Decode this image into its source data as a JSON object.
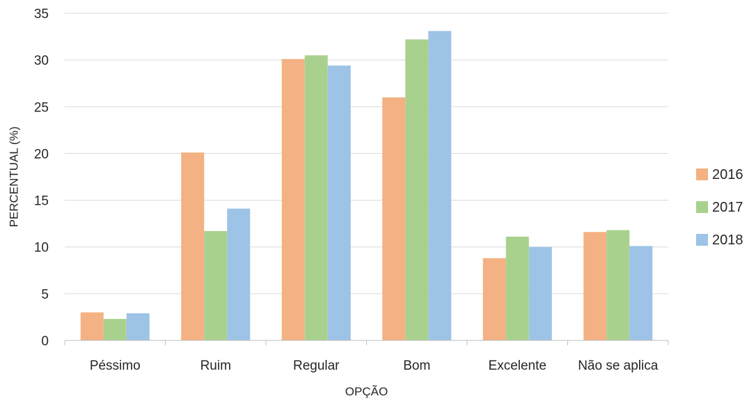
{
  "chart_data": {
    "type": "bar",
    "categories": [
      "Péssimo",
      "Ruim",
      "Regular",
      "Bom",
      "Excelente",
      "Não se aplica"
    ],
    "series": [
      {
        "name": "2016",
        "color": "#f4b183",
        "values": [
          3.0,
          20.1,
          30.1,
          26.0,
          8.8,
          11.6
        ]
      },
      {
        "name": "2017",
        "color": "#a9d18e",
        "values": [
          2.3,
          11.7,
          30.5,
          32.2,
          11.1,
          11.8
        ]
      },
      {
        "name": "2018",
        "color": "#9dc3e6",
        "values": [
          2.9,
          14.1,
          29.4,
          33.1,
          10.0,
          10.1
        ]
      }
    ],
    "xlabel": "OPÇÃO",
    "ylabel": "PERCENTUAL (%)",
    "ylim": [
      0,
      35
    ],
    "yticks": [
      0,
      5,
      10,
      15,
      20,
      25,
      30,
      35
    ],
    "grid": true,
    "legend_position": "right"
  }
}
